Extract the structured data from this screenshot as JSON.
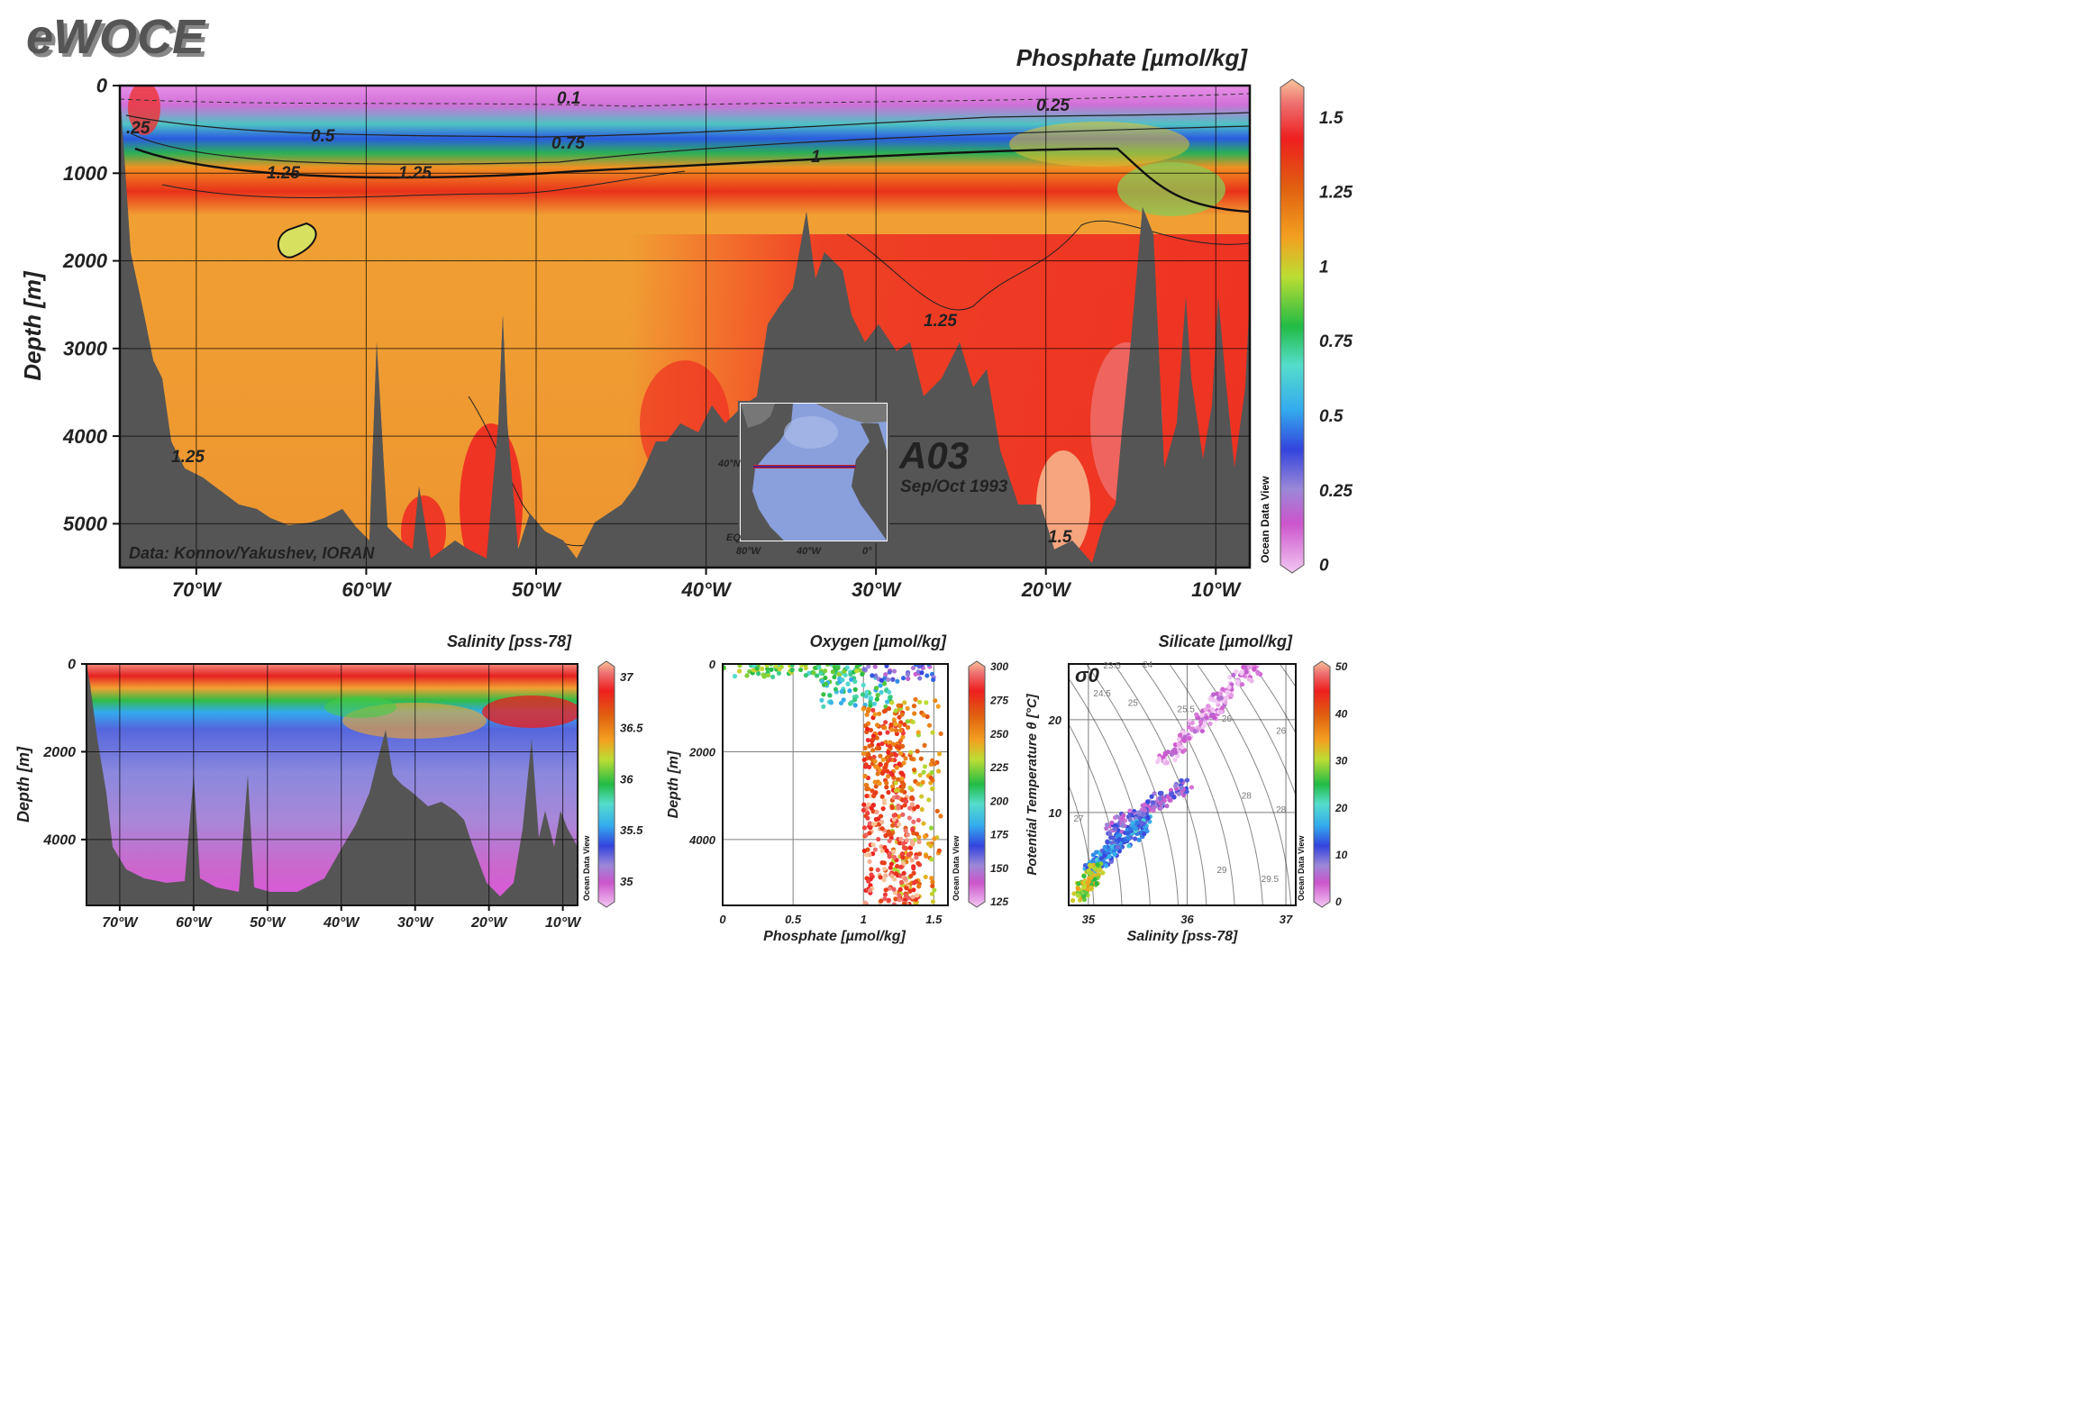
{
  "logo": "eWOCE",
  "colors": {
    "bathymetry": "#555555",
    "frame": "#111111",
    "grid": "#000000"
  },
  "credit": "Data: Konnov/Yakushev, IORAN",
  "section": {
    "id": "A03",
    "dates": "Sep/Oct 1993"
  },
  "chart_data": [
    {
      "id": "phosphate-section",
      "type": "heatmap",
      "title": "Phosphate [µmol/kg]",
      "ylabel": "Depth [m]",
      "xlim": [
        -74.5,
        -8
      ],
      "ylim": [
        5500,
        0
      ],
      "x_ticks": [
        "70°W",
        "60°W",
        "50°W",
        "40°W",
        "30°W",
        "20°W",
        "10°W"
      ],
      "y_ticks": [
        "0",
        "1000",
        "2000",
        "3000",
        "4000",
        "5000"
      ],
      "colorbar": {
        "labels": [
          "1.5",
          "1.25",
          "1",
          "0.75",
          "0.5",
          "0.25",
          "0"
        ],
        "range": [
          0,
          1.6
        ],
        "caption": "Ocean Data View"
      },
      "contour_labels": [
        "0.1",
        "0.25",
        "0.5",
        "0.75",
        "1",
        "1.25",
        "1.5"
      ]
    },
    {
      "id": "location-map",
      "type": "map",
      "lat_labels": [
        "40°N",
        "EQ"
      ],
      "lon_labels": [
        "80°W",
        "40°W",
        "0°"
      ]
    },
    {
      "id": "salinity-section",
      "type": "heatmap",
      "title": "Salinity [pss-78]",
      "ylabel": "Depth [m]",
      "xlim": [
        -74.5,
        -8
      ],
      "ylim": [
        5500,
        0
      ],
      "x_ticks": [
        "70°W",
        "60°W",
        "50°W",
        "40°W",
        "30°W",
        "20°W",
        "10°W"
      ],
      "y_ticks": [
        "0",
        "2000",
        "4000"
      ],
      "colorbar": {
        "labels": [
          "37",
          "36.5",
          "36",
          "35.5",
          "35"
        ],
        "range": [
          34.8,
          37.1
        ],
        "caption": "Ocean Data View"
      }
    },
    {
      "id": "oxygen-scatter",
      "type": "scatter",
      "title": "Oxygen [µmol/kg]",
      "xlabel": "Phosphate [µmol/kg]",
      "ylabel": "Depth [m]",
      "xlim": [
        0,
        1.6
      ],
      "ylim": [
        5500,
        0
      ],
      "x_ticks": [
        "0",
        "0.5",
        "1",
        "1.5"
      ],
      "y_ticks": [
        "0",
        "2000",
        "4000"
      ],
      "colorbar": {
        "labels": [
          "300",
          "275",
          "250",
          "225",
          "200",
          "175",
          "150",
          "125"
        ],
        "range": [
          125,
          300
        ],
        "caption": "Ocean Data View"
      },
      "clusters": [
        {
          "x_range": [
            0.0,
            1.0
          ],
          "y_range": [
            0,
            300
          ],
          "color_value": 215
        },
        {
          "x_range": [
            0.7,
            1.2
          ],
          "y_range": [
            300,
            1000
          ],
          "color_value": 200
        },
        {
          "x_range": [
            1.0,
            1.5
          ],
          "y_range": [
            0,
            400
          ],
          "color_value": 160
        },
        {
          "x_range": [
            1.0,
            1.3
          ],
          "y_range": [
            1000,
            3000
          ],
          "color_value": 265
        },
        {
          "x_range": [
            1.2,
            1.55
          ],
          "y_range": [
            800,
            5500
          ],
          "color_value": 245
        },
        {
          "x_range": [
            1.0,
            1.4
          ],
          "y_range": [
            3000,
            5500
          ],
          "color_value": 285
        }
      ]
    },
    {
      "id": "silicate-ts",
      "type": "scatter",
      "title": "Silicate [µmol/kg]",
      "xlabel": "Salinity [pss-78]",
      "ylabel": "Potential Temperature θ [°C]",
      "xlim": [
        34.8,
        37.1
      ],
      "ylim": [
        0,
        26
      ],
      "x_ticks": [
        "35",
        "36",
        "37"
      ],
      "y_ticks": [
        "10",
        "20"
      ],
      "colorbar": {
        "labels": [
          "50",
          "40",
          "30",
          "20",
          "10",
          "0"
        ],
        "range": [
          0,
          50
        ],
        "caption": "Ocean Data View"
      },
      "isopycnal_labels": [
        "23.5",
        "24",
        "24.5",
        "25",
        "25.5",
        "26",
        "26",
        "27",
        "28",
        "28",
        "29",
        "29.5"
      ],
      "density_symbol": "σ0",
      "clusters": [
        {
          "s_range": [
            35.7,
            36.7
          ],
          "t_range": [
            15,
            26
          ],
          "color_value": 2
        },
        {
          "s_range": [
            35.2,
            36.0
          ],
          "t_range": [
            8,
            13
          ],
          "color_value": 8
        },
        {
          "s_range": [
            35.0,
            35.6
          ],
          "t_range": [
            4,
            9
          ],
          "color_value": 15
        },
        {
          "s_range": [
            34.9,
            35.1
          ],
          "t_range": [
            1,
            4
          ],
          "color_value": 30
        }
      ]
    }
  ]
}
